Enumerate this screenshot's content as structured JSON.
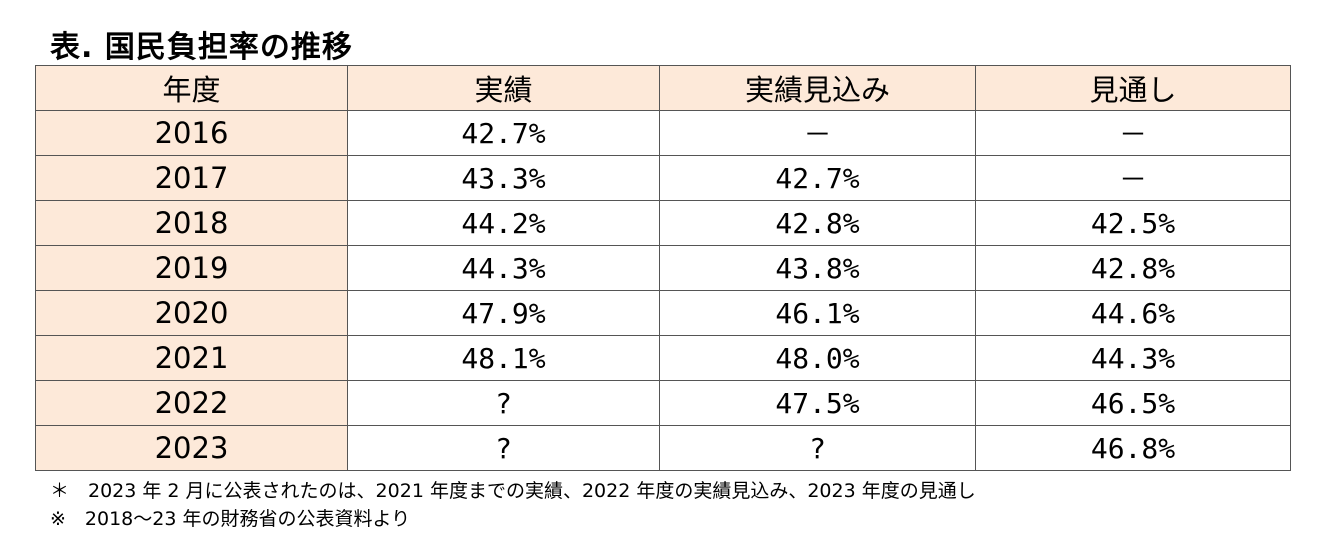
{
  "title": "表. 国民負担率の推移",
  "table": {
    "headers": [
      "年度",
      "実績",
      "実績見込み",
      "見通し"
    ],
    "rows": [
      {
        "year": "2016",
        "actual": "42.7%",
        "estimate": "－",
        "forecast": "－"
      },
      {
        "year": "2017",
        "actual": "43.3%",
        "estimate": "42.7%",
        "forecast": "－"
      },
      {
        "year": "2018",
        "actual": "44.2%",
        "estimate": "42.8%",
        "forecast": "42.5%"
      },
      {
        "year": "2019",
        "actual": "44.3%",
        "estimate": "43.8%",
        "forecast": "42.8%"
      },
      {
        "year": "2020",
        "actual": "47.9%",
        "estimate": "46.1%",
        "forecast": "44.6%"
      },
      {
        "year": "2021",
        "actual": "48.1%",
        "estimate": "48.0%",
        "forecast": "44.3%"
      },
      {
        "year": "2022",
        "actual": "?",
        "estimate": "47.5%",
        "forecast": "46.5%"
      },
      {
        "year": "2023",
        "actual": "?",
        "estimate": "?",
        "forecast": "46.8%"
      }
    ]
  },
  "notes": [
    "＊　2023 年 2 月に公表されたのは、2021 年度までの実績、2022 年度の実績見込み、2023 年度の見通し",
    "※　2018～23 年の財務省の公表資料より"
  ]
}
